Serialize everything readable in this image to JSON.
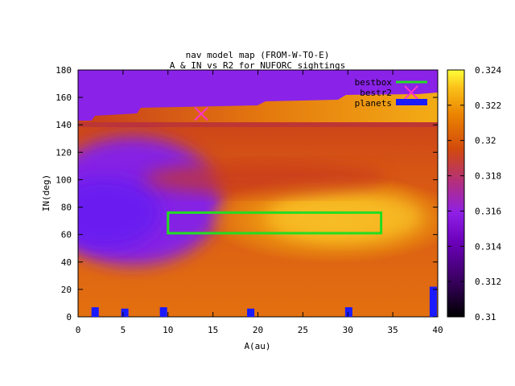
{
  "chart_data": {
    "type": "heatmap",
    "title_lines": [
      "nav model map (FROM-W-TO-E)",
      "A & IN vs R2 for NUFORC sightings"
    ],
    "xlabel": "A(au)",
    "ylabel": "IN(deg)",
    "xlim": [
      0,
      40
    ],
    "ylim": [
      0,
      180
    ],
    "x_ticks": [
      0,
      5,
      10,
      15,
      20,
      25,
      30,
      35,
      40
    ],
    "x_tick_labels": [
      "0",
      "5",
      "10",
      "15",
      "20",
      "25",
      "30",
      "35",
      "40"
    ],
    "y_ticks": [
      0,
      20,
      40,
      60,
      80,
      100,
      120,
      140,
      160,
      180
    ],
    "y_tick_labels": [
      "0",
      "20",
      "40",
      "60",
      "80",
      "100",
      "120",
      "140",
      "160",
      "180"
    ],
    "colorbar": {
      "range": [
        0.31,
        0.324
      ],
      "ticks": [
        0.31,
        0.312,
        0.314,
        0.316,
        0.318,
        0.32,
        0.322,
        0.324
      ],
      "tick_labels": [
        "0.31",
        "0.312",
        "0.314",
        "0.316",
        "0.318",
        "0.32",
        "0.322",
        "0.324"
      ]
    },
    "legend": {
      "placement": "top-right",
      "entries": [
        "bestbox",
        "bestr2",
        "planets"
      ]
    },
    "bestbox": {
      "x_range": [
        10,
        33.7
      ],
      "y_range": [
        61,
        76
      ]
    },
    "bestr2": {
      "x": 13.7,
      "y": 148
    },
    "planets": [
      {
        "x": 1.9,
        "height": 7
      },
      {
        "x": 5.2,
        "height": 6
      },
      {
        "x": 9.5,
        "height": 7
      },
      {
        "x": 19.2,
        "height": 6
      },
      {
        "x": 30.1,
        "height": 7
      },
      {
        "x": 39.5,
        "height": 22
      }
    ]
  },
  "colors": {
    "bestbox": "#22dd22",
    "bestr2": "#ff33cc",
    "planets": "#1a1aff"
  }
}
